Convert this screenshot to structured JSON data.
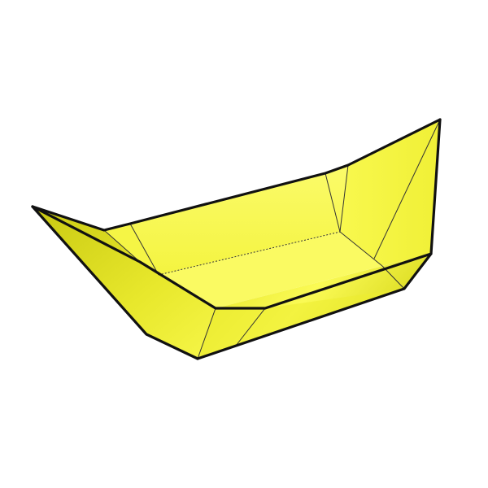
{
  "figure": {
    "subject": "",
    "colors": {
      "background": "#ffffff",
      "outline": "#111111",
      "fold_line": "#333333",
      "face_light": "#fbfb5a",
      "face_mid": "#f3f33a",
      "face_dark": "#d9d91a",
      "face_shadow": "#c6c610",
      "inner_floor": "#fafa62"
    }
  }
}
